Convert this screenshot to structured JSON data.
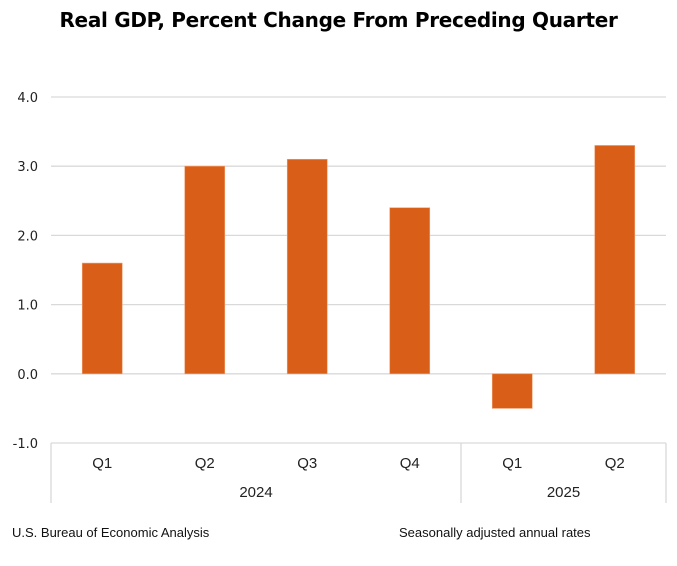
{
  "chart_data": {
    "type": "bar",
    "title": "Real GDP, Percent Change From Preceding Quarter",
    "xlabel": "",
    "ylabel": "",
    "categories": [
      "Q1",
      "Q2",
      "Q3",
      "Q4",
      "Q1",
      "Q2"
    ],
    "groups": [
      {
        "label": "2024",
        "categories": [
          "Q1",
          "Q2",
          "Q3",
          "Q4"
        ]
      },
      {
        "label": "2025",
        "categories": [
          "Q1",
          "Q2"
        ]
      }
    ],
    "values": [
      1.6,
      3.0,
      3.1,
      2.4,
      -0.5,
      3.3
    ],
    "ylim": [
      -1.0,
      4.0
    ],
    "yticks": [
      "-1.0",
      "0.0",
      "1.0",
      "2.0",
      "3.0",
      "4.0"
    ],
    "grid": true,
    "bar_color": "#D95F18",
    "grid_color": "#D9D9D9"
  },
  "footer": {
    "source": "U.S. Bureau of Economic Analysis",
    "note": "Seasonally adjusted annual rates"
  }
}
